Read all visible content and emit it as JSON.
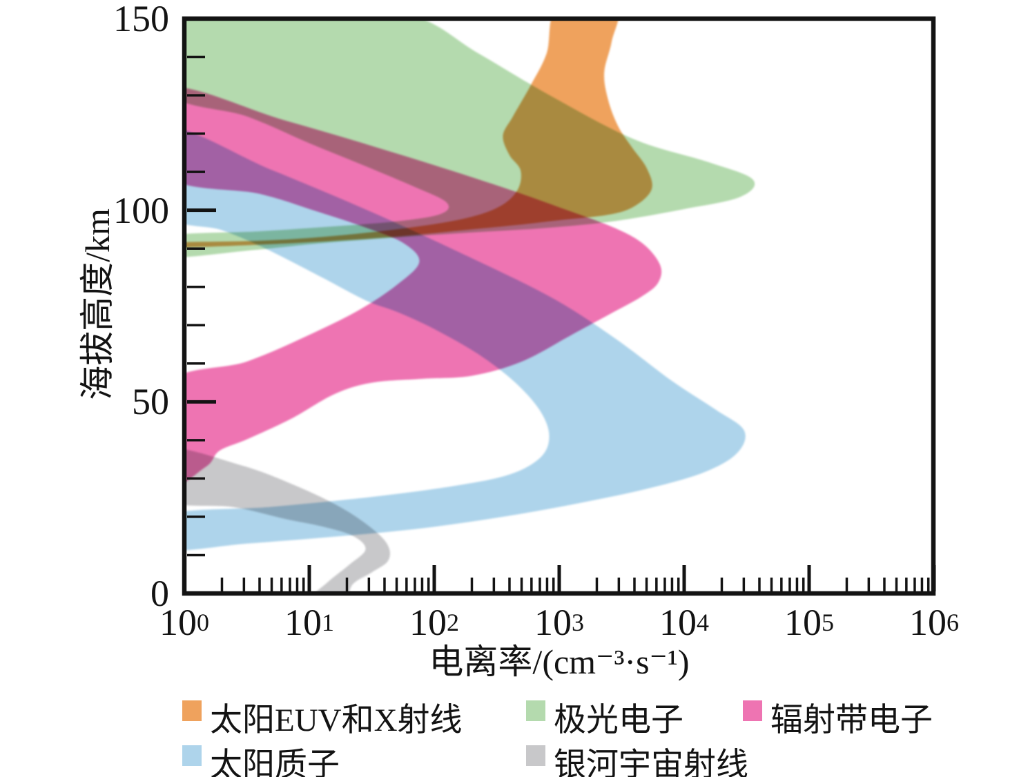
{
  "x_axis": {
    "label": "电离率/(cm⁻³·s⁻¹)",
    "scale": "log",
    "tick_base": "10",
    "tick_exponents": [
      0,
      1,
      2,
      3,
      4,
      5,
      6
    ],
    "range_exponents": [
      0,
      6
    ],
    "minor_ticks_per_decade": [
      2,
      3,
      4,
      5,
      6,
      7,
      8,
      9
    ]
  },
  "y_axis": {
    "label": "海拔高度/km",
    "major_ticks": [
      150,
      100,
      50,
      0
    ],
    "minor_tick_step_km": 10,
    "range_km": [
      0,
      150
    ]
  },
  "colors": {
    "axis": "#131313",
    "solar_euv_xray": "#EFA25D",
    "auroral_electrons": "#B4DAAE",
    "radiation_belt_electrons": "#EE74B2",
    "solar_protons": "#AED4EB",
    "galactic_cosmic_rays": "#C8C8CA"
  },
  "chart_data": {
    "type": "area",
    "note": "Overlapping translucent altitude-band regions; each outline is a closed curve of [log10(ionization rate, cm^-3 s^-1), altitude km] pairs read from the figure.",
    "xlabel": "电离率/(cm⁻³·s⁻¹)",
    "ylabel": "海拔高度/km",
    "xlim_log10": [
      0,
      6
    ],
    "ylim_km": [
      0,
      150
    ],
    "series": [
      {
        "id": "solar_euv_xray",
        "label": "太阳EUV和X射线",
        "color": "#EFA25D",
        "max_rate_cm3_s": 5500,
        "alt_at_max_km": 106,
        "outline": [
          [
            -0.15,
            90.2
          ],
          [
            0.8,
            91.3
          ],
          [
            1.6,
            92.9
          ],
          [
            2.2,
            94.7
          ],
          [
            2.65,
            96.1
          ],
          [
            3.0,
            97.4
          ],
          [
            3.39,
            98.8
          ],
          [
            3.6,
            101
          ],
          [
            3.74,
            105.5
          ],
          [
            3.7,
            111
          ],
          [
            3.58,
            116.5
          ],
          [
            3.47,
            122
          ],
          [
            3.39,
            129
          ],
          [
            3.36,
            136
          ],
          [
            3.42,
            144
          ],
          [
            3.45,
            153
          ],
          [
            2.99,
            153
          ],
          [
            2.9,
            141
          ],
          [
            2.77,
            132.5
          ],
          [
            2.63,
            124.5
          ],
          [
            2.55,
            119.5
          ],
          [
            2.6,
            114.5
          ],
          [
            2.69,
            110.5
          ],
          [
            2.67,
            105.5
          ],
          [
            2.54,
            101.3
          ],
          [
            2.3,
            98.3
          ],
          [
            1.9,
            95.9
          ],
          [
            1.3,
            93.6
          ],
          [
            0.65,
            92.1
          ],
          [
            -0.15,
            91.5
          ]
        ]
      },
      {
        "id": "auroral_electrons",
        "label": "极光电子",
        "color": "#B4DAAE",
        "max_rate_cm3_s": 35000,
        "alt_at_max_km": 108,
        "outline": [
          [
            -0.15,
            153
          ],
          [
            0.9,
            152.5
          ],
          [
            1.8,
            151
          ],
          [
            2.35,
            141
          ],
          [
            2.95,
            129.5
          ],
          [
            3.6,
            118.5
          ],
          [
            4.2,
            112.5
          ],
          [
            4.55,
            108
          ],
          [
            4.45,
            103.5
          ],
          [
            4.0,
            100.3
          ],
          [
            3.45,
            97.2
          ],
          [
            2.9,
            95.4
          ],
          [
            2.3,
            94.2
          ],
          [
            1.7,
            92.9
          ],
          [
            1.1,
            91.4
          ],
          [
            0.55,
            89.6
          ],
          [
            -0.15,
            87.8
          ],
          [
            -0.15,
            93.2
          ],
          [
            0.6,
            94.5
          ],
          [
            1.2,
            95.8
          ],
          [
            1.7,
            97.1
          ],
          [
            2.05,
            99
          ],
          [
            2.1,
            102
          ],
          [
            1.85,
            106
          ],
          [
            1.45,
            111.5
          ],
          [
            1.0,
            117.5
          ],
          [
            0.5,
            124.5
          ],
          [
            -0.15,
            131.2
          ]
        ]
      },
      {
        "id": "radiation_belt_electrons",
        "label": "辐射带电子",
        "color": "#EE74B2",
        "max_rate_cm3_s": 6500,
        "alt_at_max_km": 83,
        "outline": [
          [
            -0.15,
            131.7
          ],
          [
            0.8,
            123.5
          ],
          [
            1.7,
            114.8
          ],
          [
            2.5,
            106.5
          ],
          [
            3.05,
            100.2
          ],
          [
            3.45,
            95.3
          ],
          [
            3.68,
            91
          ],
          [
            3.81,
            85.5
          ],
          [
            3.79,
            81
          ],
          [
            3.66,
            77.5
          ],
          [
            3.44,
            73.5
          ],
          [
            3.1,
            67.5
          ],
          [
            2.7,
            60.5
          ],
          [
            2.3,
            56.8
          ],
          [
            1.9,
            56
          ],
          [
            1.5,
            55
          ],
          [
            1.2,
            52
          ],
          [
            0.85,
            45.5
          ],
          [
            0.5,
            40.2
          ],
          [
            0.28,
            37.2
          ],
          [
            0.17,
            33
          ],
          [
            -0.15,
            28.6
          ],
          [
            -0.15,
            54.2
          ],
          [
            0.5,
            60.5
          ],
          [
            1.0,
            67.5
          ],
          [
            1.4,
            74
          ],
          [
            1.7,
            80.5
          ],
          [
            1.88,
            86.5
          ],
          [
            1.75,
            91.5
          ],
          [
            1.45,
            95.5
          ],
          [
            1.05,
            99.8
          ],
          [
            0.6,
            104.3
          ],
          [
            -0.15,
            109.3
          ]
        ]
      },
      {
        "id": "solar_protons",
        "label": "太阳质子",
        "color": "#AED4EB",
        "max_rate_cm3_s": 30000,
        "alt_at_max_km": 42,
        "outline": [
          [
            -0.15,
            121.3
          ],
          [
            0.7,
            110.5
          ],
          [
            1.5,
            99.5
          ],
          [
            2.3,
            87.5
          ],
          [
            2.95,
            77
          ],
          [
            3.45,
            66.5
          ],
          [
            3.9,
            55.5
          ],
          [
            4.25,
            48
          ],
          [
            4.48,
            42.5
          ],
          [
            4.42,
            36.5
          ],
          [
            4.15,
            31.5
          ],
          [
            3.7,
            27.3
          ],
          [
            3.15,
            23.5
          ],
          [
            2.55,
            20
          ],
          [
            1.9,
            17
          ],
          [
            1.2,
            14.8
          ],
          [
            0.5,
            13
          ],
          [
            -0.15,
            11.6
          ],
          [
            -0.15,
            20.5
          ],
          [
            0.7,
            22.6
          ],
          [
            1.5,
            25.2
          ],
          [
            2.15,
            28
          ],
          [
            2.6,
            31
          ],
          [
            2.85,
            35.5
          ],
          [
            2.92,
            41
          ],
          [
            2.85,
            47.5
          ],
          [
            2.65,
            55
          ],
          [
            2.35,
            62.5
          ],
          [
            2.0,
            69
          ],
          [
            1.7,
            73.5
          ],
          [
            1.45,
            76.5
          ],
          [
            1.1,
            82.5
          ],
          [
            0.65,
            90
          ],
          [
            0.3,
            94.8
          ],
          [
            -0.15,
            99.4
          ]
        ]
      },
      {
        "id": "galactic_cosmic_rays",
        "label": "银河宇宙射线",
        "color": "#C8C8CA",
        "max_rate_cm3_s": 43,
        "alt_at_max_km": 11,
        "outline": [
          [
            -0.15,
            37.6
          ],
          [
            0.45,
            33.5
          ],
          [
            0.9,
            28
          ],
          [
            1.25,
            22.5
          ],
          [
            1.5,
            17
          ],
          [
            1.63,
            12.5
          ],
          [
            1.63,
            8.5
          ],
          [
            1.5,
            5.5
          ],
          [
            1.35,
            2.5
          ],
          [
            1.27,
            -2
          ],
          [
            1.0,
            -2
          ],
          [
            1.15,
            3
          ],
          [
            1.32,
            7.5
          ],
          [
            1.45,
            11.5
          ],
          [
            1.35,
            15
          ],
          [
            1.1,
            17.5
          ],
          [
            0.8,
            19.5
          ],
          [
            0.4,
            22.5
          ],
          [
            -0.15,
            24.5
          ]
        ]
      }
    ]
  },
  "legend": {
    "rows": [
      [
        "solar_euv_xray",
        "auroral_electrons",
        "radiation_belt_electrons"
      ],
      [
        "solar_protons",
        "galactic_cosmic_rays"
      ]
    ]
  }
}
